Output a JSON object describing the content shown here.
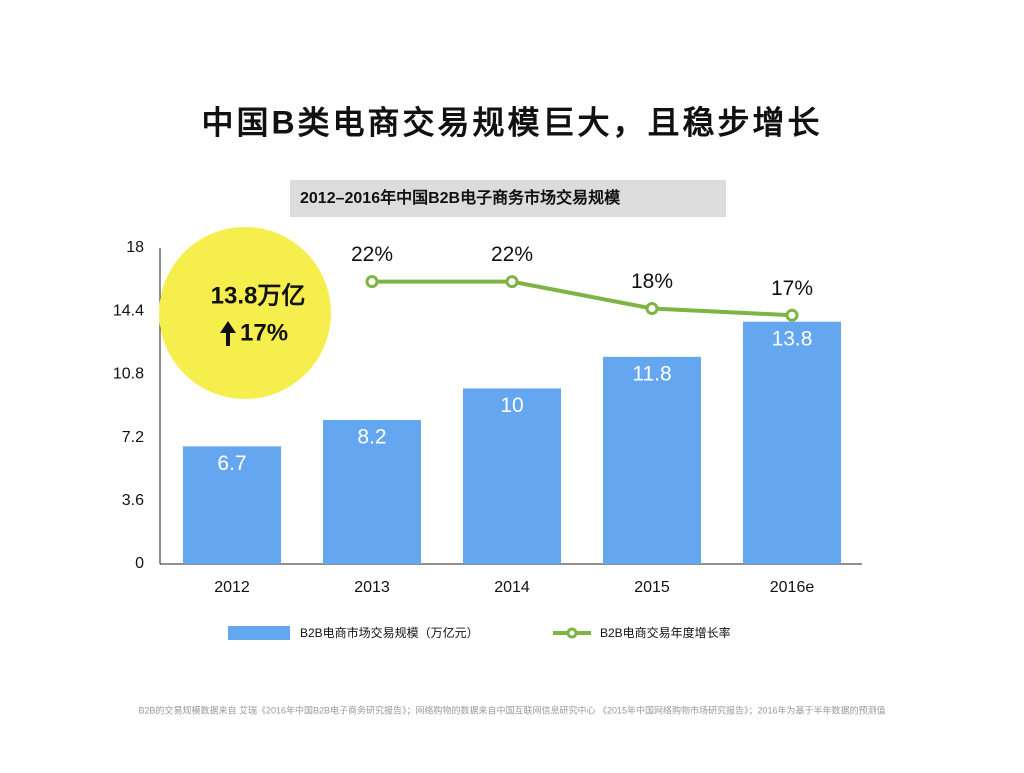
{
  "chart_data": {
    "type": "bar",
    "title": "中国B类电商交易规模巨大，且稳步增长",
    "subtitle": "2012–2016年中国B2B电子商务市场交易规模",
    "categories": [
      "2012",
      "2013",
      "2014",
      "2015",
      "2016e"
    ],
    "series": [
      {
        "name": "B2B电商市场交易规模（万亿元）",
        "type": "bar",
        "color": "#64a7f0",
        "values": [
          6.7,
          8.2,
          10,
          11.8,
          13.8
        ]
      },
      {
        "name": "B2B电商交易年度增长率",
        "type": "line",
        "axis": "y2",
        "color": "#7db443",
        "values": [
          null,
          22,
          22,
          18,
          17
        ],
        "value_labels": [
          null,
          "22%",
          "22%",
          "18%",
          "17%"
        ]
      }
    ],
    "ylim": [
      0,
      18
    ],
    "yticks": [
      0,
      3.6,
      7.2,
      10.8,
      14.4,
      18
    ],
    "y2lim": [
      -20,
      27
    ],
    "annotations": [
      "13.8万亿",
      "17%"
    ],
    "footnote": "B2B的交易规模数据来自 艾瑞《2016年中国B2B电子商务研究报告》；网络购物的数据来自中国互联网信息研究中心 《2015年中国网络购物市场研究报告》；2016年为基于半年数据的预测值"
  }
}
